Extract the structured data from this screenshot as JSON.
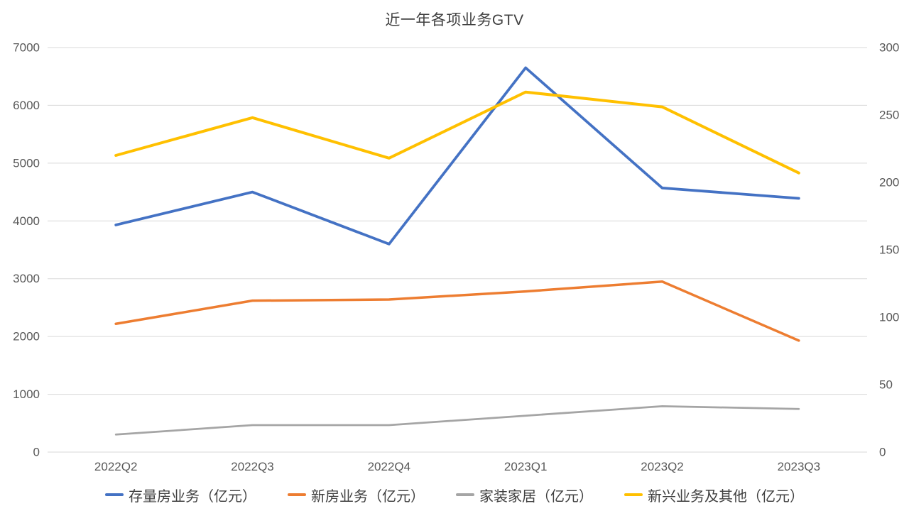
{
  "title": "近一年各项业务GTV",
  "chart_data": {
    "type": "line",
    "title": "近一年各项业务GTV",
    "categories": [
      "2022Q2",
      "2022Q3",
      "2022Q4",
      "2023Q1",
      "2023Q2",
      "2023Q3"
    ],
    "series": [
      {
        "name": "存量房业务（亿元）",
        "axis": "left",
        "color": "#4472C4",
        "values": [
          3930,
          4500,
          3600,
          6650,
          4570,
          4390
        ]
      },
      {
        "name": "新房业务（亿元）",
        "axis": "left",
        "color": "#ED7D31",
        "values": [
          2220,
          2620,
          2640,
          2780,
          2950,
          1930
        ]
      },
      {
        "name": "家装家居（亿元）",
        "axis": "right",
        "color": "#A5A5A5",
        "values": [
          13,
          20,
          20,
          27,
          34,
          32
        ]
      },
      {
        "name": "新兴业务及其他（亿元）",
        "axis": "right",
        "color": "#FFC000",
        "values": [
          220,
          248,
          218,
          267,
          256,
          207
        ]
      }
    ],
    "left_axis": {
      "min": 0,
      "max": 7000,
      "step": 1000,
      "ticks": [
        0,
        1000,
        2000,
        3000,
        4000,
        5000,
        6000,
        7000
      ]
    },
    "right_axis": {
      "min": 0,
      "max": 300,
      "step": 50,
      "ticks": [
        0,
        50,
        100,
        150,
        200,
        250,
        300
      ]
    },
    "grid": "horizontal-left-axis",
    "legend_position": "bottom"
  },
  "colors": {
    "background": "#ffffff",
    "gridline": "#D9D9D9",
    "tick_label": "#595959",
    "title_text": "#404040",
    "legend_text": "#404040"
  }
}
